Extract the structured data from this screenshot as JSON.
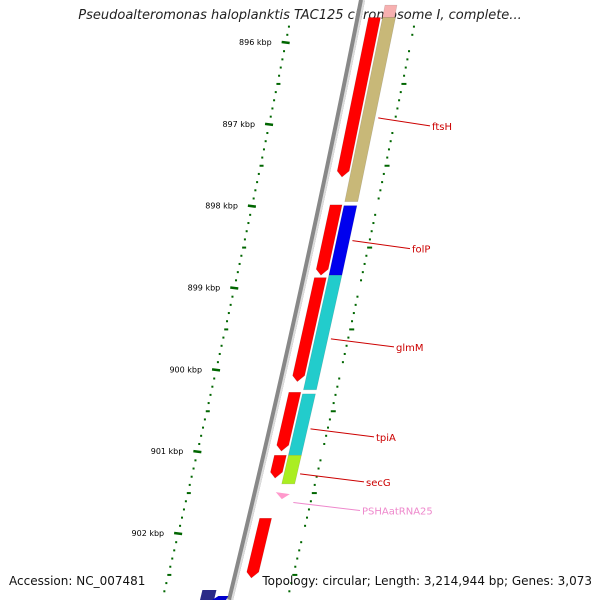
{
  "title": "Pseudoalteromonas haloplanktis TAC125 chromosome I, complete...",
  "footer": {
    "accession": "Accession: NC_007481",
    "summary": "Topology: circular; Length: 3,214,944 bp; Genes: 3,073"
  },
  "ticks": [
    {
      "label": "896 kbp",
      "kbp": 896
    },
    {
      "label": "897 kbp",
      "kbp": 897
    },
    {
      "label": "898 kbp",
      "kbp": 898
    },
    {
      "label": "899 kbp",
      "kbp": 899
    },
    {
      "label": "900 kbp",
      "kbp": 900
    },
    {
      "label": "901 kbp",
      "kbp": 901
    },
    {
      "label": "902 kbp",
      "kbp": 902
    }
  ],
  "genes": [
    {
      "name": "ftsH",
      "color": "#c8b878",
      "label_color": "#cc0000",
      "start_kbp": 895.7,
      "end_kbp": 897.95
    },
    {
      "name": "folP",
      "color": "#0000ee",
      "label_color": "#cc0000",
      "start_kbp": 898.0,
      "end_kbp": 898.85
    },
    {
      "name": "glmM",
      "color": "#22cccc",
      "label_color": "#cc0000",
      "start_kbp": 898.85,
      "end_kbp": 900.25
    },
    {
      "name": "tpiA",
      "color": "#22cccc",
      "label_color": "#cc0000",
      "start_kbp": 900.3,
      "end_kbp": 901.05
    },
    {
      "name": "secG",
      "color": "#aaee22",
      "label_color": "#cc0000",
      "start_kbp": 901.05,
      "end_kbp": 901.4
    },
    {
      "name": "PSHAatRNA25",
      "color": "#ff99cc",
      "label_color": "#ee88cc",
      "start_kbp": 901.5,
      "end_kbp": 901.6
    }
  ],
  "colors": {
    "backbone": "#888888",
    "tick": "#006600",
    "orf_red": "#ff0000",
    "other_strand": "#2a2a88"
  }
}
